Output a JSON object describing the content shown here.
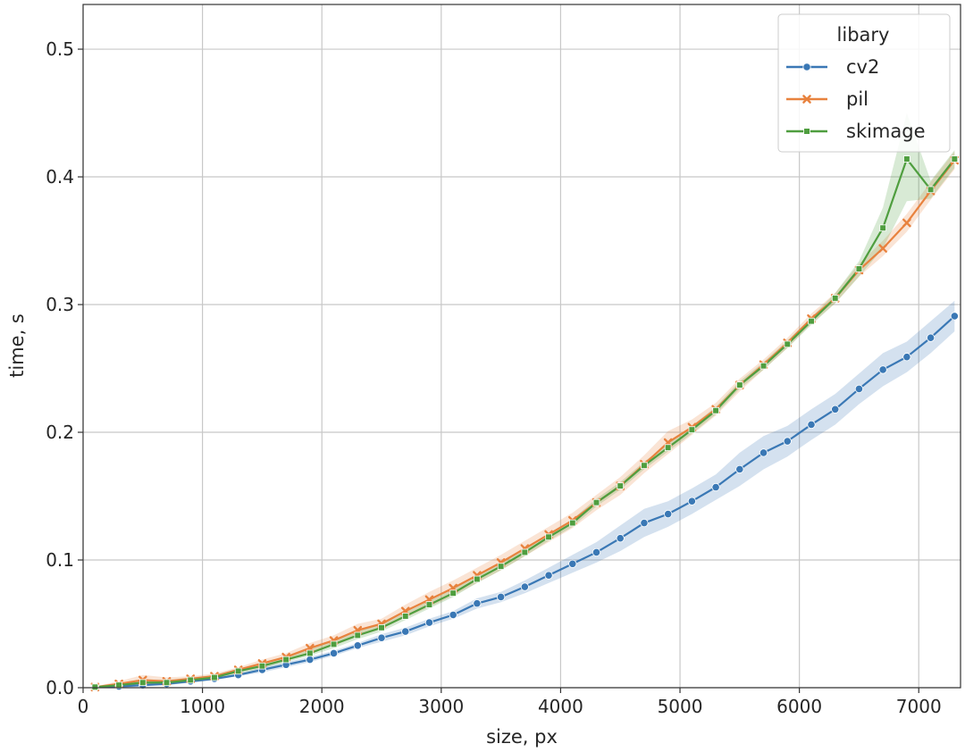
{
  "chart_data": {
    "type": "line",
    "xlabel": "size, px",
    "ylabel": "time, s",
    "xlim": [
      0,
      7350
    ],
    "ylim": [
      0,
      0.535
    ],
    "xticks": [
      0,
      1000,
      2000,
      3000,
      4000,
      5000,
      6000,
      7000
    ],
    "xtick_labels": [
      "0",
      "1000",
      "2000",
      "3000",
      "4000",
      "5000",
      "6000",
      "7000"
    ],
    "yticks": [
      0.0,
      0.1,
      0.2,
      0.3,
      0.4,
      0.5
    ],
    "ytick_labels": [
      "0.0",
      "0.1",
      "0.2",
      "0.3",
      "0.4",
      "0.5"
    ],
    "grid": true,
    "legend": {
      "title": "libary",
      "position": "top-right"
    },
    "x": [
      100,
      300,
      500,
      700,
      900,
      1100,
      1300,
      1500,
      1700,
      1900,
      2100,
      2300,
      2500,
      2700,
      2900,
      3100,
      3300,
      3500,
      3700,
      3900,
      4100,
      4300,
      4500,
      4700,
      4900,
      5100,
      5300,
      5500,
      5700,
      5900,
      6100,
      6300,
      6500,
      6700,
      6900,
      7100,
      7300
    ],
    "series": [
      {
        "name": "cv2",
        "color": "#3a78b5",
        "marker": "circle",
        "values": [
          0.0005,
          0.001,
          0.002,
          0.003,
          0.005,
          0.007,
          0.01,
          0.014,
          0.018,
          0.022,
          0.027,
          0.033,
          0.039,
          0.044,
          0.051,
          0.057,
          0.066,
          0.071,
          0.079,
          0.088,
          0.097,
          0.106,
          0.117,
          0.129,
          0.136,
          0.146,
          0.157,
          0.171,
          0.184,
          0.193,
          0.206,
          0.218,
          0.234,
          0.249,
          0.259,
          0.274,
          0.291
        ],
        "lower": [
          0.0,
          0.0,
          0.001,
          0.002,
          0.004,
          0.006,
          0.009,
          0.012,
          0.016,
          0.02,
          0.025,
          0.031,
          0.036,
          0.041,
          0.048,
          0.054,
          0.062,
          0.067,
          0.074,
          0.082,
          0.09,
          0.098,
          0.107,
          0.118,
          0.126,
          0.136,
          0.147,
          0.158,
          0.171,
          0.181,
          0.194,
          0.206,
          0.222,
          0.236,
          0.247,
          0.262,
          0.279
        ],
        "upper": [
          0.001,
          0.002,
          0.004,
          0.004,
          0.006,
          0.008,
          0.011,
          0.016,
          0.02,
          0.024,
          0.029,
          0.035,
          0.042,
          0.047,
          0.054,
          0.06,
          0.07,
          0.075,
          0.084,
          0.094,
          0.104,
          0.114,
          0.127,
          0.14,
          0.146,
          0.156,
          0.167,
          0.184,
          0.197,
          0.205,
          0.218,
          0.23,
          0.246,
          0.262,
          0.271,
          0.287,
          0.303
        ]
      },
      {
        "name": "pil",
        "color": "#e8823e",
        "marker": "x",
        "values": [
          0.0005,
          0.003,
          0.006,
          0.005,
          0.007,
          0.009,
          0.014,
          0.019,
          0.024,
          0.031,
          0.037,
          0.045,
          0.05,
          0.06,
          0.069,
          0.078,
          0.088,
          0.098,
          0.109,
          0.12,
          0.131,
          0.145,
          0.158,
          0.175,
          0.192,
          0.204,
          0.218,
          0.237,
          0.253,
          0.27,
          0.289,
          0.305,
          0.327,
          0.344,
          0.364,
          0.389,
          0.413
        ],
        "lower": [
          0.0,
          0.001,
          0.002,
          0.002,
          0.005,
          0.007,
          0.012,
          0.016,
          0.021,
          0.027,
          0.033,
          0.04,
          0.046,
          0.055,
          0.063,
          0.072,
          0.082,
          0.092,
          0.103,
          0.114,
          0.125,
          0.139,
          0.151,
          0.168,
          0.183,
          0.198,
          0.213,
          0.232,
          0.249,
          0.266,
          0.285,
          0.301,
          0.322,
          0.338,
          0.357,
          0.382,
          0.406
        ],
        "upper": [
          0.001,
          0.005,
          0.01,
          0.008,
          0.009,
          0.011,
          0.016,
          0.022,
          0.027,
          0.035,
          0.041,
          0.05,
          0.054,
          0.065,
          0.075,
          0.084,
          0.094,
          0.104,
          0.115,
          0.126,
          0.137,
          0.151,
          0.165,
          0.182,
          0.201,
          0.21,
          0.223,
          0.242,
          0.257,
          0.274,
          0.293,
          0.309,
          0.332,
          0.35,
          0.371,
          0.396,
          0.42
        ]
      },
      {
        "name": "skimage",
        "color": "#4f9e3f",
        "marker": "square",
        "values": [
          0.0005,
          0.002,
          0.004,
          0.004,
          0.006,
          0.008,
          0.013,
          0.017,
          0.022,
          0.027,
          0.034,
          0.041,
          0.047,
          0.056,
          0.065,
          0.074,
          0.085,
          0.095,
          0.106,
          0.118,
          0.129,
          0.145,
          0.158,
          0.174,
          0.188,
          0.202,
          0.217,
          0.237,
          0.252,
          0.269,
          0.287,
          0.305,
          0.328,
          0.36,
          0.414,
          0.39,
          0.414
        ],
        "lower": [
          0.0,
          0.001,
          0.002,
          0.002,
          0.004,
          0.006,
          0.011,
          0.015,
          0.02,
          0.025,
          0.031,
          0.038,
          0.044,
          0.053,
          0.062,
          0.071,
          0.082,
          0.092,
          0.103,
          0.115,
          0.126,
          0.142,
          0.155,
          0.171,
          0.185,
          0.199,
          0.214,
          0.234,
          0.249,
          0.266,
          0.284,
          0.301,
          0.322,
          0.344,
          0.381,
          0.383,
          0.407
        ],
        "upper": [
          0.001,
          0.003,
          0.006,
          0.006,
          0.008,
          0.01,
          0.015,
          0.019,
          0.024,
          0.03,
          0.037,
          0.044,
          0.05,
          0.059,
          0.068,
          0.077,
          0.088,
          0.098,
          0.109,
          0.121,
          0.132,
          0.148,
          0.161,
          0.177,
          0.191,
          0.205,
          0.22,
          0.24,
          0.255,
          0.272,
          0.29,
          0.309,
          0.334,
          0.376,
          0.45,
          0.397,
          0.421
        ]
      }
    ]
  }
}
